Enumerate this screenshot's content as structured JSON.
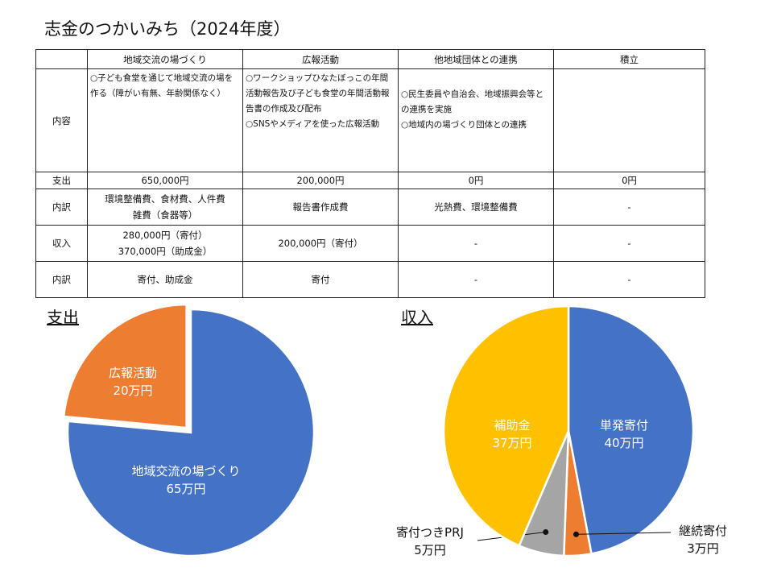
{
  "title": "志金のつかいみち（2024年度）",
  "table": {
    "columns": [
      "",
      "地域交流の場づくり",
      "広報活動",
      "他地域団体との連携",
      "積立"
    ],
    "rows": {
      "content": {
        "label": "内容",
        "cells": [
          "○子ども食堂を通じて地域交流の場を作る（障がい有無、年齢関係なく）",
          "○ワークショップひなたぼっこの年間活動報告及び子ども食堂の年間活動報告書の作成及び配布\n○SNSやメディアを使った広報活動",
          "○民生委員や自治会、地域振興会等との連携を実施\n○地域内の場づくり団体との連携",
          ""
        ]
      },
      "expense": {
        "label": "支出",
        "cells": [
          "650,000円",
          "200,000円",
          "0円",
          "0円"
        ]
      },
      "expense_detail": {
        "label": "内訳",
        "cells": [
          "環境整備費、食材費、人件費",
          "報告書作成費",
          "光熱費、環境整備費",
          "-"
        ],
        "extra_line": "雑費（食器等）"
      },
      "income": {
        "label": "収入",
        "cells": [
          "280,000円（寄付）",
          "200,000円（寄付）",
          "-",
          "-"
        ],
        "extra_line": "370,000円（助成金）"
      },
      "income_detail": {
        "label": "内訳",
        "cells": [
          "寄付、助成金",
          "寄付",
          "-",
          "-"
        ]
      }
    }
  },
  "chart_data": [
    {
      "type": "pie",
      "title": "支出",
      "slices": [
        {
          "label": "地域交流の場づくり",
          "value_label": "65万円",
          "value": 65,
          "color": "#4472C4"
        },
        {
          "label": "広報活動",
          "value_label": "20万円",
          "value": 20,
          "color": "#ED7D31"
        }
      ]
    },
    {
      "type": "pie",
      "title": "収入",
      "slices": [
        {
          "label": "単発寄付",
          "value_label": "40万円",
          "value": 40,
          "color": "#4472C4"
        },
        {
          "label": "継続寄付",
          "value_label": "3万円",
          "value": 3,
          "color": "#ED7D31"
        },
        {
          "label": "寄付つきPRJ",
          "value_label": "5万円",
          "value": 5,
          "color": "#A5A5A5"
        },
        {
          "label": "補助金",
          "value_label": "37万円",
          "value": 37,
          "color": "#FFC000"
        }
      ]
    }
  ]
}
